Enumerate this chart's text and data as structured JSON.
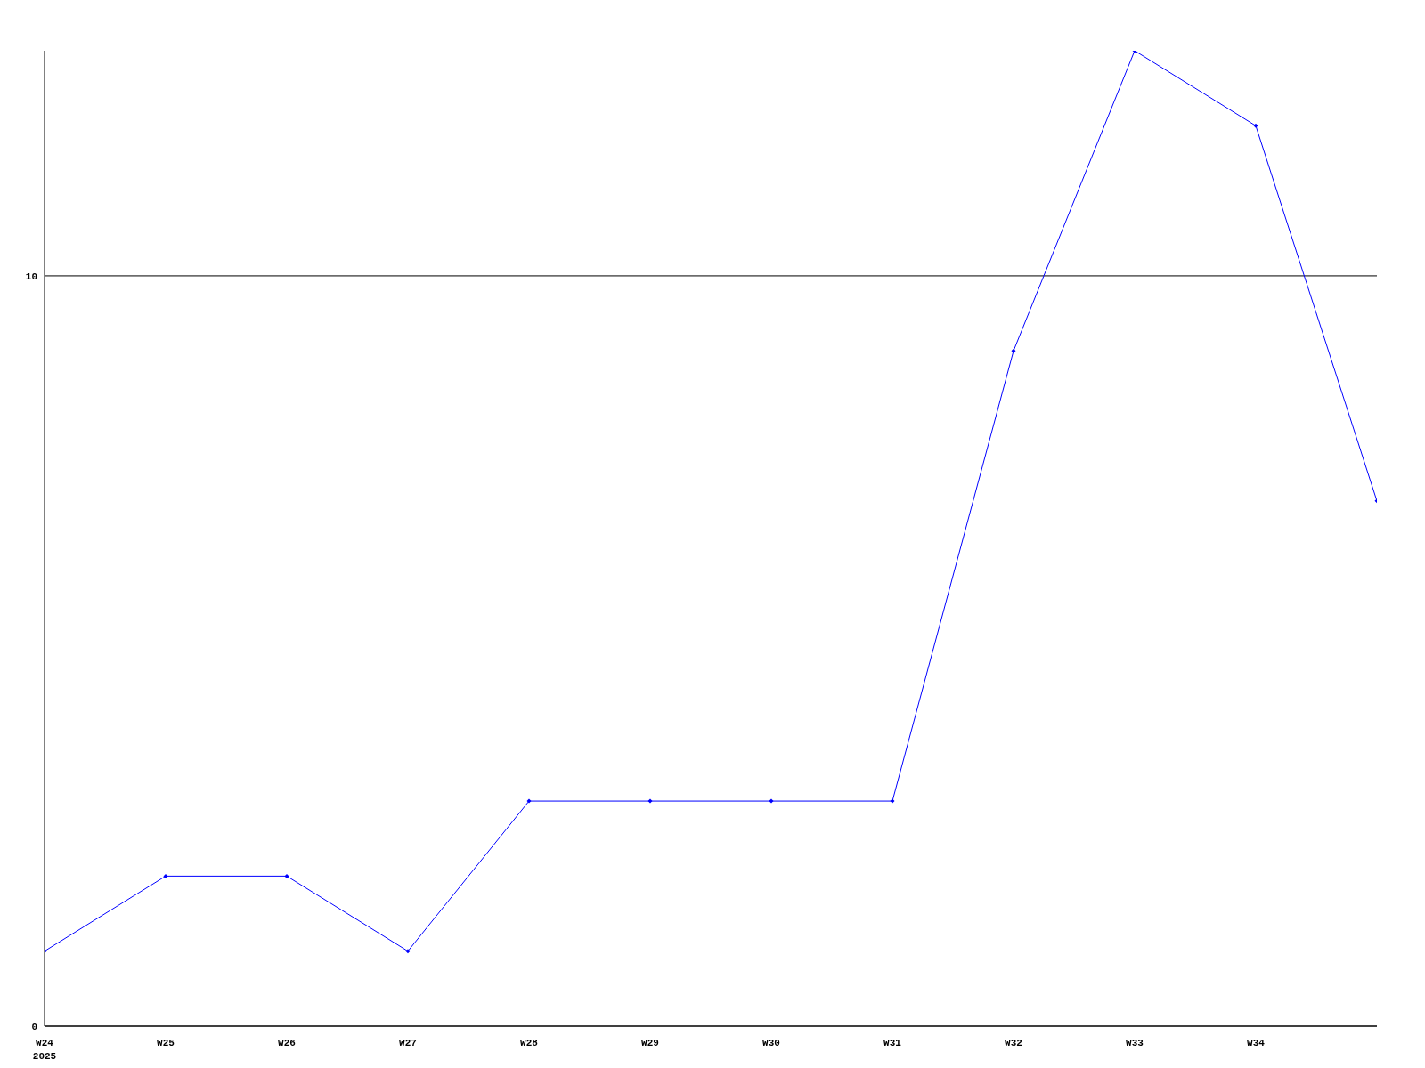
{
  "chart_data": {
    "type": "line",
    "categories": [
      "W24\n2025",
      "W25",
      "W26",
      "W27",
      "W28",
      "W29",
      "W30",
      "W31",
      "W32",
      "W33",
      "W34",
      null
    ],
    "series": [
      {
        "color": "#0000ff",
        "values": [
          1,
          2,
          2,
          1,
          3,
          3,
          3,
          3,
          9,
          13,
          12,
          7
        ]
      }
    ],
    "ylim": [
      0,
      13
    ],
    "yticks": [
      0,
      10
    ],
    "grid": "y",
    "marker": "diamond"
  }
}
